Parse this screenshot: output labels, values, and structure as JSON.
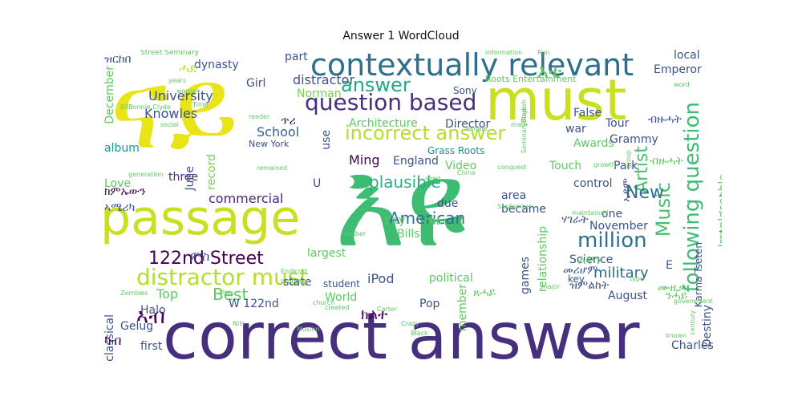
{
  "title": "Answer 1 WordCloud",
  "words": [
    {
      "text": "correct answer",
      "color": "#46307e"
    },
    {
      "text": "passage",
      "color": "#c8e020"
    },
    {
      "text": "ናይ",
      "color": "#e8e418"
    },
    {
      "text": "እዩ",
      "color": "#3fbc73"
    },
    {
      "text": "must",
      "color": "#c8e020"
    },
    {
      "text": "contextually relevant",
      "color": "#2d708e"
    },
    {
      "text": "question based",
      "color": "#46307e"
    },
    {
      "text": "incorrect answer",
      "color": "#b5de2b"
    },
    {
      "text": "answer",
      "color": "#23a884"
    },
    {
      "text": "distractor must",
      "color": "#b5de2b"
    },
    {
      "text": "following question",
      "color": "#3fbc73"
    },
    {
      "text": "122nd Street",
      "color": "#440154"
    },
    {
      "text": "million",
      "color": "#2c728e"
    },
    {
      "text": "plausible",
      "color": "#29af7f"
    },
    {
      "text": "American",
      "color": "#2d708e"
    },
    {
      "text": "Music",
      "color": "#48c16e"
    },
    {
      "text": "Artist",
      "color": "#48c16e"
    },
    {
      "text": "New",
      "color": "#2c728e"
    },
    {
      "text": "military",
      "color": "#31688e"
    },
    {
      "text": "Best",
      "color": "#5ec962"
    },
    {
      "text": "Knowles",
      "color": "#3b528b"
    },
    {
      "text": "University",
      "color": "#3b528b"
    },
    {
      "text": "distractor",
      "color": "#3b528b"
    },
    {
      "text": "School",
      "color": "#355f8d"
    },
    {
      "text": "Ming",
      "color": "#440154"
    },
    {
      "text": "Architecture",
      "color": "#5ec962"
    },
    {
      "text": "Director",
      "color": "#3b528b"
    },
    {
      "text": "commercial",
      "color": "#482878"
    },
    {
      "text": "three",
      "color": "#482878"
    },
    {
      "text": "Love",
      "color": "#5ec962"
    },
    {
      "text": "album",
      "color": "#21918c"
    },
    {
      "text": "record",
      "color": "#7ad151"
    },
    {
      "text": "June",
      "color": "#3b528b"
    },
    {
      "text": "Girl",
      "color": "#3b528b"
    },
    {
      "text": "dynasty",
      "color": "#3b528b"
    },
    {
      "text": "part",
      "color": "#3b528b"
    },
    {
      "text": "Norman",
      "color": "#7ad151"
    },
    {
      "text": "Sony",
      "color": "#3b528b"
    },
    {
      "text": "England",
      "color": "#3b528b"
    },
    {
      "text": "Video",
      "color": "#5ec962"
    },
    {
      "text": "Grass Roots",
      "color": "#21918c"
    },
    {
      "text": "Touch",
      "color": "#5ec962"
    },
    {
      "text": "Awards",
      "color": "#5ec962"
    },
    {
      "text": "war",
      "color": "#3b528b"
    },
    {
      "text": "False",
      "color": "#3b528b"
    },
    {
      "text": "Tour",
      "color": "#3b528b"
    },
    {
      "text": "Grammy",
      "color": "#3b528b"
    },
    {
      "text": "Park",
      "color": "#3b528b"
    },
    {
      "text": "control",
      "color": "#3b528b"
    },
    {
      "text": "area",
      "color": "#3b528b"
    },
    {
      "text": "became",
      "color": "#3b528b"
    },
    {
      "text": "one",
      "color": "#3b528b"
    },
    {
      "text": "November",
      "color": "#3b528b"
    },
    {
      "text": "Science",
      "color": "#3b528b"
    },
    {
      "text": "key",
      "color": "#3b528b"
    },
    {
      "text": "August",
      "color": "#3b528b"
    },
    {
      "text": "Top",
      "color": "#5ec962"
    },
    {
      "text": "Halo",
      "color": "#3b528b"
    },
    {
      "text": "Gelug",
      "color": "#3b528b"
    },
    {
      "text": "first",
      "color": "#3b528b"
    },
    {
      "text": "W 122nd",
      "color": "#3b528b"
    },
    {
      "text": "World",
      "color": "#5ec962"
    },
    {
      "text": "state",
      "color": "#3b528b"
    },
    {
      "text": "largest",
      "color": "#5ec962"
    },
    {
      "text": "iPod",
      "color": "#3b528b"
    },
    {
      "text": "city",
      "color": "#5ec962"
    },
    {
      "text": "Bills",
      "color": "#5ec962"
    },
    {
      "text": "Pop",
      "color": "#3b528b"
    },
    {
      "text": "political",
      "color": "#5ec962"
    },
    {
      "text": "student",
      "color": "#3b528b"
    },
    {
      "text": "local",
      "color": "#3b528b"
    },
    {
      "text": "Emperor",
      "color": "#3b528b"
    },
    {
      "text": "physical",
      "color": "#3b528b"
    },
    {
      "text": "Irreplaceable",
      "color": "#5ec962"
    },
    {
      "text": "Charles",
      "color": "#3b528b"
    },
    {
      "text": "Destiny",
      "color": "#3b528b"
    },
    {
      "text": "December",
      "color": "#5ec962"
    },
    {
      "text": "New York",
      "color": "#3b528b"
    },
    {
      "text": "classical",
      "color": "#3b528b"
    },
    {
      "text": "Roots Entertainment",
      "color": "#5ec962"
    },
    {
      "text": "Street Seminary",
      "color": "#5ec962"
    },
    {
      "text": "member",
      "color": "#5ec962"
    },
    {
      "text": "games",
      "color": "#3b528b"
    },
    {
      "text": "relationship",
      "color": "#5ec962"
    },
    {
      "text": "Karma Tseten",
      "color": "#3b528b"
    },
    {
      "text": "ዝርከበ",
      "color": "#3b528b"
    },
    {
      "text": "ሓደ",
      "color": "#b5de2b"
    },
    {
      "text": "ጥሪ",
      "color": "#440154"
    },
    {
      "text": "ኣብ",
      "color": "#440154"
    },
    {
      "text": "እቲ",
      "color": "#5ec962"
    },
    {
      "text": "ብዙሓት",
      "color": "#3b528b"
    },
    {
      "text": "ምስ",
      "color": "#3b528b"
    },
    {
      "text": "ካብ",
      "color": "#440154"
    },
    {
      "text": "ክልተ",
      "color": "#440154"
    },
    {
      "text": "ግዜ",
      "color": "#5ec962"
    },
    {
      "text": "እዋን",
      "color": "#5ec962"
    },
    {
      "text": "ዝምልከት",
      "color": "#3b528b"
    },
    {
      "text": "ጸሓይ",
      "color": "#5ec962"
    },
    {
      "text": "ንሓይ",
      "color": "#5ec962"
    },
    {
      "text": "መሪሆም",
      "color": "#3b528b"
    },
    {
      "text": "ሃገራት",
      "color": "#3b528b"
    },
    {
      "text": "ክምኡውን",
      "color": "#440154"
    },
    {
      "text": "ኣሜሪካ",
      "color": "#3b528b"
    },
    {
      "text": "ሙዚቃ",
      "color": "#5ec962"
    },
    {
      "text": "ኣዳም",
      "color": "#3b528b"
    },
    {
      "text": "ብዙሓት",
      "color": "#5ec962"
    },
    {
      "text": "information",
      "color": "#5ec962"
    },
    {
      "text": "03Bonnie Clyde",
      "color": "#5ec962"
    },
    {
      "text": "woman",
      "color": "#5ec962"
    },
    {
      "text": "years",
      "color": "#5ec962"
    },
    {
      "text": "reader",
      "color": "#5ec962"
    },
    {
      "text": "female",
      "color": "#5ec962"
    },
    {
      "text": "social",
      "color": "#5ec962"
    },
    {
      "text": "generation",
      "color": "#5ec962"
    },
    {
      "text": "China",
      "color": "#5ec962"
    },
    {
      "text": "conquest",
      "color": "#5ec962"
    },
    {
      "text": "September",
      "color": "#5ec962"
    },
    {
      "text": "remained",
      "color": "#5ec962"
    },
    {
      "text": "problem",
      "color": "#5ec962"
    },
    {
      "text": "Zombies",
      "color": "#5ec962"
    },
    {
      "text": "church",
      "color": "#5ec962"
    },
    {
      "text": "Muslim",
      "color": "#5ec962"
    },
    {
      "text": "Carter",
      "color": "#5ec962"
    },
    {
      "text": "Crazy",
      "color": "#5ec962"
    },
    {
      "text": "Black",
      "color": "#5ec962"
    },
    {
      "text": "known",
      "color": "#5ec962"
    },
    {
      "text": "century",
      "color": "#5ec962"
    },
    {
      "text": "government",
      "color": "#5ec962"
    },
    {
      "text": "group",
      "color": "#5ec962"
    },
    {
      "text": "growth",
      "color": "#5ec962"
    },
    {
      "text": "maintained",
      "color": "#5ec962"
    },
    {
      "text": "type",
      "color": "#5ec962"
    },
    {
      "text": "major",
      "color": "#5ec962"
    },
    {
      "text": "Run",
      "color": "#5ec962"
    },
    {
      "text": "word",
      "color": "#5ec962"
    },
    {
      "text": "Play",
      "color": "#5ec962"
    },
    {
      "text": "created",
      "color": "#5ec962"
    },
    {
      "text": "number",
      "color": "#5ec962"
    },
    {
      "text": "Time",
      "color": "#5ec962"
    },
    {
      "text": "Endicott",
      "color": "#5ec962"
    },
    {
      "text": "math",
      "color": "#5ec962"
    },
    {
      "text": "Seminary Row",
      "color": "#5ec962"
    },
    {
      "text": "English",
      "color": "#5ec962"
    },
    {
      "text": "seed",
      "color": "#5ec962"
    },
    {
      "text": "Nils",
      "color": "#5ec962"
    },
    {
      "text": "U",
      "color": "#3b528b"
    },
    {
      "text": "E",
      "color": "#3b528b"
    },
    {
      "text": "use",
      "color": "#3b528b"
    },
    {
      "text": "due",
      "color": "#3b528b"
    }
  ]
}
